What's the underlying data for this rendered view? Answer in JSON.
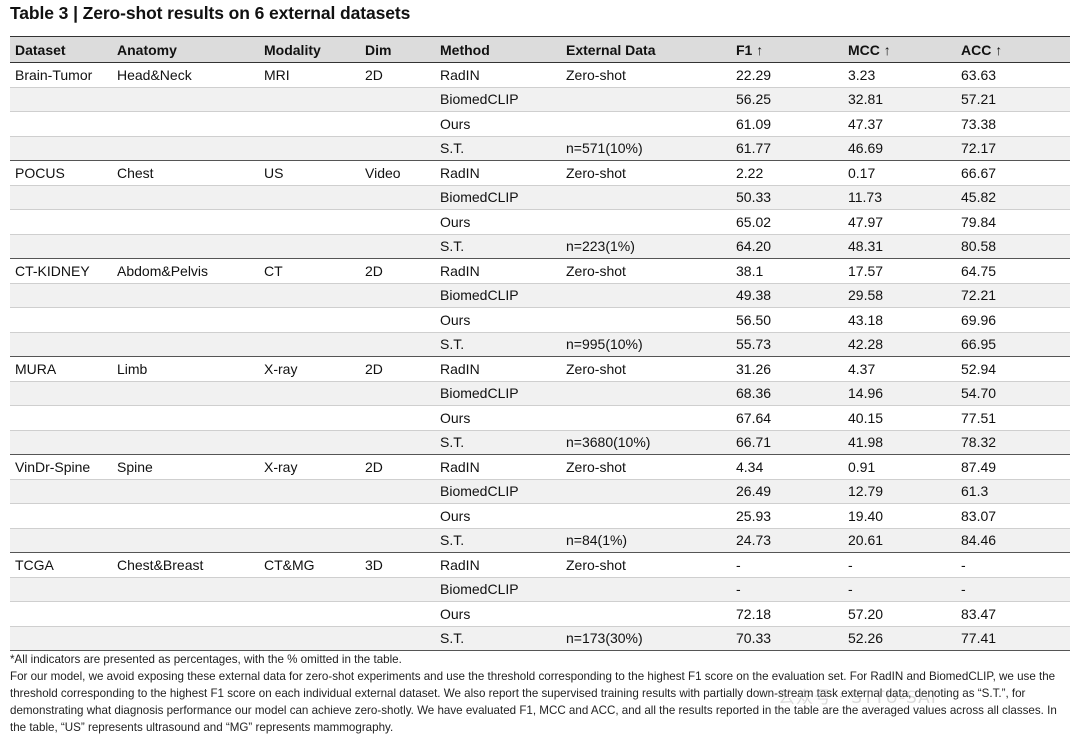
{
  "title": "Table 3 | Zero-shot results on 6 external datasets",
  "headers": [
    "Dataset",
    "Anatomy",
    "Modality",
    "Dim",
    "Method",
    "External Data",
    "F1 ↑",
    "MCC ↑",
    "ACC ↑"
  ],
  "rows": [
    [
      "Brain-Tumor",
      "Head&Neck",
      "MRI",
      "2D",
      "RadIN",
      "Zero-shot",
      "22.29",
      "3.23",
      "63.63"
    ],
    [
      "",
      "",
      "",
      "",
      "BiomedCLIP",
      "",
      "56.25",
      "32.81",
      "57.21"
    ],
    [
      "",
      "",
      "",
      "",
      "Ours",
      "",
      "61.09",
      "47.37",
      "73.38"
    ],
    [
      "",
      "",
      "",
      "",
      "S.T.",
      "n=571(10%)",
      "61.77",
      "46.69",
      "72.17"
    ],
    [
      "POCUS",
      "Chest",
      "US",
      "Video",
      "RadIN",
      "Zero-shot",
      "2.22",
      "0.17",
      "66.67"
    ],
    [
      "",
      "",
      "",
      "",
      "BiomedCLIP",
      "",
      "50.33",
      "11.73",
      "45.82"
    ],
    [
      "",
      "",
      "",
      "",
      "Ours",
      "",
      "65.02",
      "47.97",
      "79.84"
    ],
    [
      "",
      "",
      "",
      "",
      "S.T.",
      "n=223(1%)",
      "64.20",
      "48.31",
      "80.58"
    ],
    [
      "CT-KIDNEY",
      "Abdom&Pelvis",
      "CT",
      "2D",
      "RadIN",
      "Zero-shot",
      "38.1",
      "17.57",
      "64.75"
    ],
    [
      "",
      "",
      "",
      "",
      "BiomedCLIP",
      "",
      "49.38",
      "29.58",
      "72.21"
    ],
    [
      "",
      "",
      "",
      "",
      "Ours",
      "",
      "56.50",
      "43.18",
      "69.96"
    ],
    [
      "",
      "",
      "",
      "",
      "S.T.",
      "n=995(10%)",
      "55.73",
      "42.28",
      "66.95"
    ],
    [
      "MURA",
      "Limb",
      "X-ray",
      "2D",
      "RadIN",
      "Zero-shot",
      "31.26",
      "4.37",
      "52.94"
    ],
    [
      "",
      "",
      "",
      "",
      "BiomedCLIP",
      "",
      "68.36",
      "14.96",
      "54.70"
    ],
    [
      "",
      "",
      "",
      "",
      "Ours",
      "",
      "67.64",
      "40.15",
      "77.51"
    ],
    [
      "",
      "",
      "",
      "",
      "S.T.",
      "n=3680(10%)",
      "66.71",
      "41.98",
      "78.32"
    ],
    [
      "VinDr-Spine",
      "Spine",
      "X-ray",
      "2D",
      "RadIN",
      "Zero-shot",
      "4.34",
      "0.91",
      "87.49"
    ],
    [
      "",
      "",
      "",
      "",
      "BiomedCLIP",
      "",
      "26.49",
      "12.79",
      "61.3"
    ],
    [
      "",
      "",
      "",
      "",
      "Ours",
      "",
      "25.93",
      "19.40",
      "83.07"
    ],
    [
      "",
      "",
      "",
      "",
      "S.T.",
      "n=84(1%)",
      "24.73",
      "20.61",
      "84.46"
    ],
    [
      "TCGA",
      "Chest&Breast",
      "CT&MG",
      "3D",
      "RadIN",
      "Zero-shot",
      "-",
      "-",
      "-"
    ],
    [
      "",
      "",
      "",
      "",
      "BiomedCLIP",
      "",
      "-",
      "-",
      "-"
    ],
    [
      "",
      "",
      "",
      "",
      "Ours",
      "",
      "72.18",
      "57.20",
      "83.47"
    ],
    [
      "",
      "",
      "",
      "",
      "S.T.",
      "n=173(30%)",
      "70.33",
      "52.26",
      "77.41"
    ]
  ],
  "notes": [
    "*All indicators are presented as percentages, with the % omitted in the table.",
    "For our model, we avoid exposing these external data for zero-shot experiments and use the threshold corresponding to the highest F1 score on the evaluation set. For RadIN and BiomedCLIP, we use the threshold corresponding to the highest F1 score on each individual external dataset. We also report the supervised training results with partially down-stream task external data, denoting as “S.T.”, for demonstrating what diagnosis performance our model can achieve zero-shotly. We have evaluated F1, MCC and ACC, and all the results reported in the table are the averaged values across all classes. In the table, “US” represents ultrasound and “MG” represents mammography."
  ],
  "watermark": "公众号 · STTU-SAI"
}
